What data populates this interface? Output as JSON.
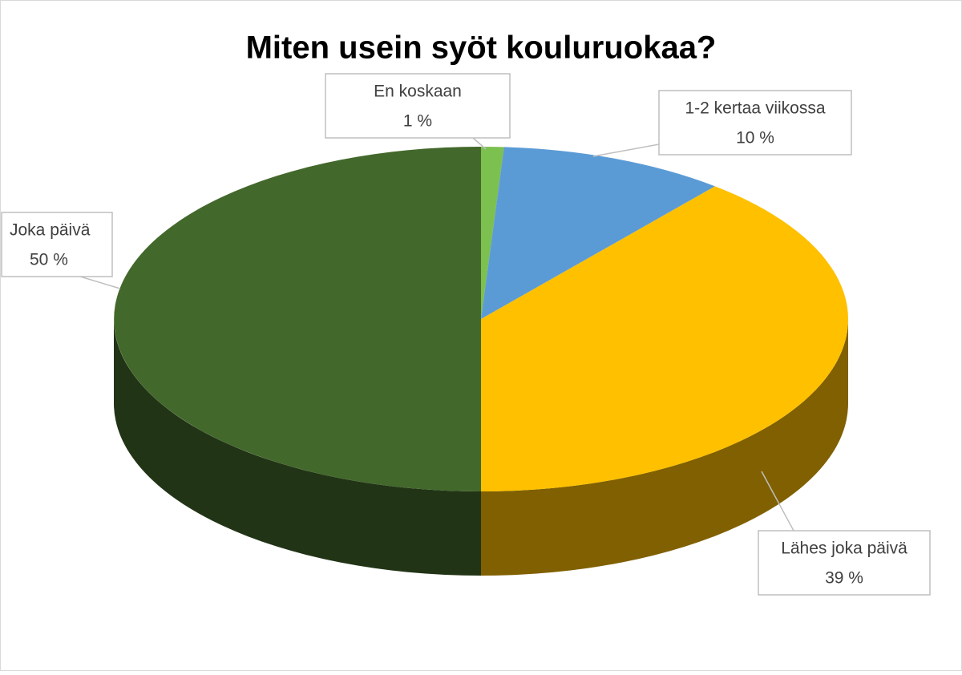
{
  "chart_data": {
    "type": "pie",
    "title": "Miten usein syöt kouluruokaa?",
    "categories": [
      "En koskaan",
      "1-2 kertaa viikossa",
      "Lähes joka päivä",
      "Joka päivä"
    ],
    "values": [
      1,
      10,
      39,
      50
    ],
    "value_labels": [
      "1 %",
      "10 %",
      "39 %",
      "50 %"
    ],
    "colors": [
      "#7cc04f",
      "#5b9bd5",
      "#ffc000",
      "#43682b"
    ]
  }
}
